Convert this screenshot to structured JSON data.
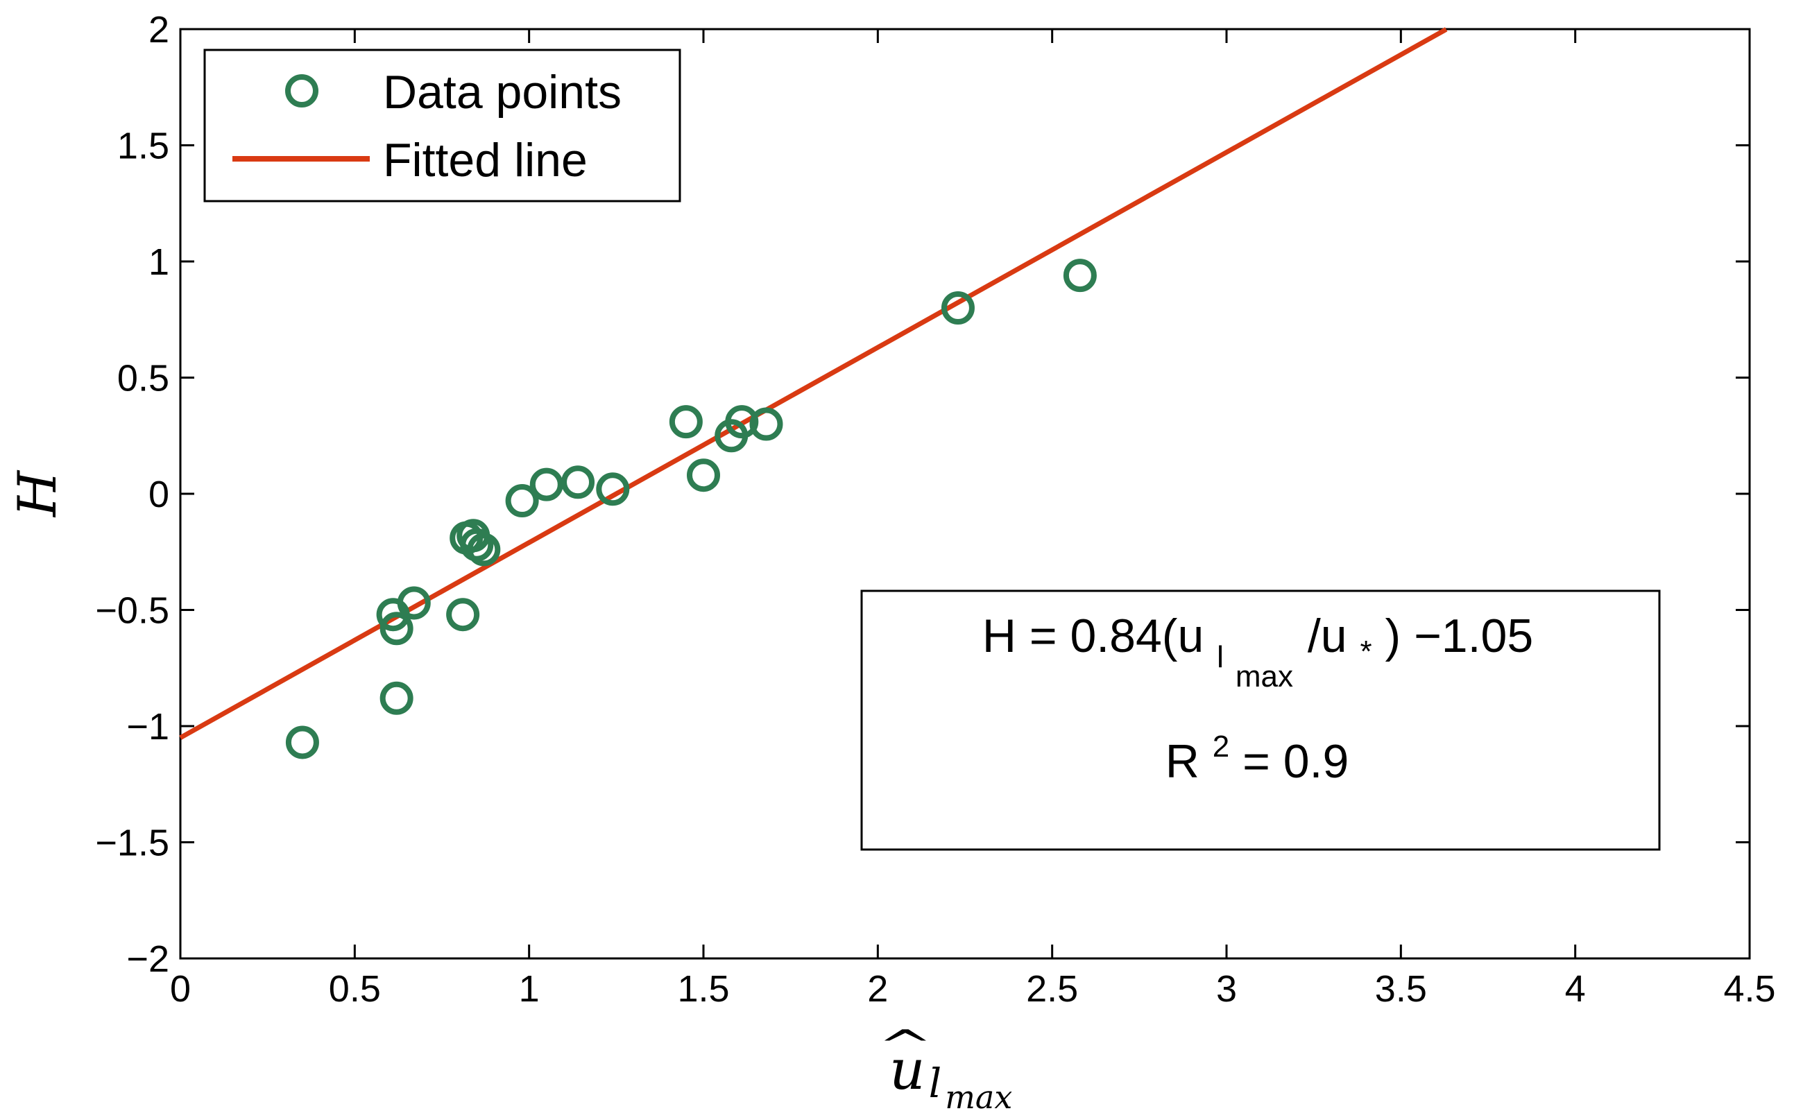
{
  "chart_data": {
    "type": "scatter",
    "title": "",
    "xlabel": "u",
    "xlabel_subscript": "l",
    "xlabel_subsubscript": "max",
    "xlabel_accent": "^",
    "ylabel": "H",
    "xlim": [
      0,
      4.5
    ],
    "ylim": [
      -2,
      2
    ],
    "xticks": [
      0,
      0.5,
      1,
      1.5,
      2,
      2.5,
      3,
      3.5,
      4,
      4.5
    ],
    "xtick_labels": [
      "0",
      "0.5",
      "1",
      "1.5",
      "2",
      "2.5",
      "3",
      "3.5",
      "4",
      "4.5"
    ],
    "yticks": [
      -2,
      -1.5,
      -1,
      -0.5,
      0,
      0.5,
      1,
      1.5,
      2
    ],
    "ytick_labels": [
      "−2",
      "−1.5",
      "−1",
      "−0.5",
      "0",
      "0.5",
      "1",
      "1.5",
      "2"
    ],
    "grid": false,
    "legend_position": "top-left",
    "series": [
      {
        "name": "Data points",
        "kind": "scatter",
        "marker": "open-circle",
        "color": "#2e7d52",
        "points": [
          {
            "x": 0.35,
            "y": -1.07
          },
          {
            "x": 0.61,
            "y": -0.52
          },
          {
            "x": 0.62,
            "y": -0.58
          },
          {
            "x": 0.62,
            "y": -0.88
          },
          {
            "x": 0.67,
            "y": -0.47
          },
          {
            "x": 0.81,
            "y": -0.52
          },
          {
            "x": 0.82,
            "y": -0.19
          },
          {
            "x": 0.84,
            "y": -0.18
          },
          {
            "x": 0.85,
            "y": -0.22
          },
          {
            "x": 0.87,
            "y": -0.24
          },
          {
            "x": 0.98,
            "y": -0.03
          },
          {
            "x": 1.05,
            "y": 0.04
          },
          {
            "x": 1.14,
            "y": 0.05
          },
          {
            "x": 1.24,
            "y": 0.02
          },
          {
            "x": 1.45,
            "y": 0.31
          },
          {
            "x": 1.5,
            "y": 0.08
          },
          {
            "x": 1.58,
            "y": 0.25
          },
          {
            "x": 1.61,
            "y": 0.31
          },
          {
            "x": 1.68,
            "y": 0.3
          },
          {
            "x": 2.23,
            "y": 0.8
          },
          {
            "x": 2.58,
            "y": 0.94
          }
        ]
      },
      {
        "name": "Fitted line",
        "kind": "line",
        "color": "#d93a12",
        "slope": 0.84,
        "intercept": -1.05,
        "x_range": [
          0,
          3.63
        ]
      }
    ],
    "annotation": {
      "line1_prefix": "H = 0.84(u",
      "line1_sub": "l",
      "line1_subsub": "max",
      "line1_mid": "/u",
      "line1_star": "*",
      "line1_suffix": ") −1.05",
      "line2_prefix": "R",
      "line2_sup": "2",
      "line2_suffix": " = 0.9"
    }
  }
}
